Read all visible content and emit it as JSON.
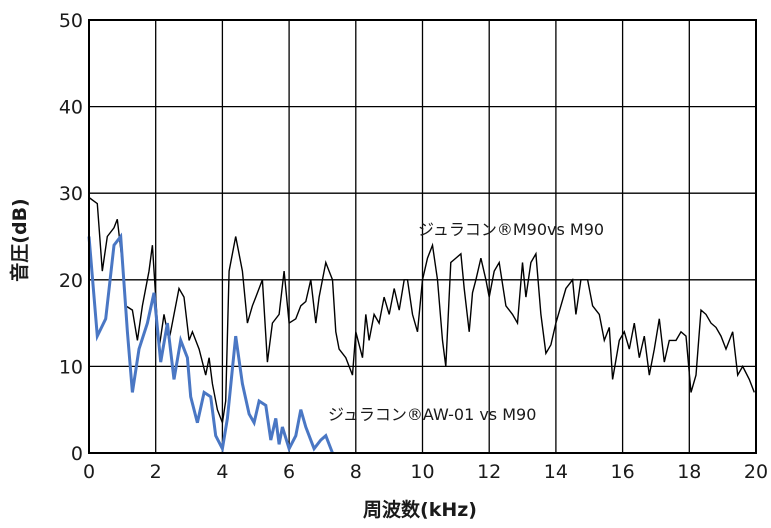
{
  "chart_data": {
    "type": "line",
    "title": "",
    "xlabel": "周波数(kHz)",
    "ylabel": "音圧(dB)",
    "xlim": [
      0,
      20
    ],
    "ylim": [
      0,
      50
    ],
    "x_ticks": [
      "0",
      "2",
      "4",
      "6",
      "8",
      "10",
      "12",
      "14",
      "16",
      "18",
      "20"
    ],
    "y_ticks": [
      "0",
      "10",
      "20",
      "30",
      "40",
      "50"
    ],
    "grid": true,
    "series": [
      {
        "name": "ジュラコン®M90vs M90",
        "color": "#000000",
        "points": [
          [
            0,
            29.5
          ],
          [
            0.25,
            28.8
          ],
          [
            0.4,
            21
          ],
          [
            0.55,
            25
          ],
          [
            0.75,
            26
          ],
          [
            0.85,
            27
          ],
          [
            1.0,
            22
          ],
          [
            1.1,
            17
          ],
          [
            1.3,
            16.5
          ],
          [
            1.45,
            13
          ],
          [
            1.6,
            17
          ],
          [
            1.8,
            21
          ],
          [
            1.9,
            24
          ],
          [
            2.0,
            18
          ],
          [
            2.1,
            12
          ],
          [
            2.25,
            16
          ],
          [
            2.4,
            13
          ],
          [
            2.55,
            16
          ],
          [
            2.7,
            19
          ],
          [
            2.85,
            18
          ],
          [
            3.0,
            13
          ],
          [
            3.1,
            14
          ],
          [
            3.3,
            12
          ],
          [
            3.5,
            9
          ],
          [
            3.6,
            11
          ],
          [
            3.7,
            8
          ],
          [
            3.85,
            5
          ],
          [
            4.0,
            3.5
          ],
          [
            4.1,
            6
          ],
          [
            4.2,
            21
          ],
          [
            4.4,
            25
          ],
          [
            4.6,
            21
          ],
          [
            4.75,
            15
          ],
          [
            4.9,
            17
          ],
          [
            5.0,
            18
          ],
          [
            5.2,
            20
          ],
          [
            5.35,
            10.5
          ],
          [
            5.5,
            15
          ],
          [
            5.7,
            16
          ],
          [
            5.85,
            21
          ],
          [
            6.0,
            15
          ],
          [
            6.2,
            15.5
          ],
          [
            6.35,
            17
          ],
          [
            6.5,
            17.5
          ],
          [
            6.65,
            20
          ],
          [
            6.8,
            15
          ],
          [
            6.9,
            18
          ],
          [
            7.1,
            22
          ],
          [
            7.2,
            21
          ],
          [
            7.3,
            20
          ],
          [
            7.4,
            14
          ],
          [
            7.5,
            12
          ],
          [
            7.7,
            11
          ],
          [
            7.9,
            9
          ],
          [
            8.0,
            14
          ],
          [
            8.2,
            11
          ],
          [
            8.3,
            16
          ],
          [
            8.4,
            13
          ],
          [
            8.55,
            16
          ],
          [
            8.7,
            15
          ],
          [
            8.85,
            18
          ],
          [
            9.0,
            16
          ],
          [
            9.15,
            19
          ],
          [
            9.3,
            16.5
          ],
          [
            9.45,
            20
          ],
          [
            9.55,
            20
          ],
          [
            9.7,
            16
          ],
          [
            9.85,
            14
          ],
          [
            10.0,
            20
          ],
          [
            10.15,
            22.5
          ],
          [
            10.3,
            24
          ],
          [
            10.45,
            20
          ],
          [
            10.6,
            13
          ],
          [
            10.7,
            10
          ],
          [
            10.85,
            22
          ],
          [
            11.0,
            22.5
          ],
          [
            11.15,
            23
          ],
          [
            11.25,
            19
          ],
          [
            11.4,
            14
          ],
          [
            11.5,
            18.5
          ],
          [
            11.6,
            20
          ],
          [
            11.75,
            22.5
          ],
          [
            11.9,
            20
          ],
          [
            12.0,
            18
          ],
          [
            12.15,
            21
          ],
          [
            12.3,
            22
          ],
          [
            12.5,
            17
          ],
          [
            12.7,
            16
          ],
          [
            12.85,
            15
          ],
          [
            13.0,
            22
          ],
          [
            13.1,
            18
          ],
          [
            13.25,
            22
          ],
          [
            13.4,
            23
          ],
          [
            13.55,
            16
          ],
          [
            13.7,
            11.5
          ],
          [
            13.85,
            12.5
          ],
          [
            14.0,
            15
          ],
          [
            14.15,
            17
          ],
          [
            14.3,
            19
          ],
          [
            14.5,
            20
          ],
          [
            14.6,
            16
          ],
          [
            14.75,
            20
          ],
          [
            14.95,
            20
          ],
          [
            15.1,
            17
          ],
          [
            15.3,
            16
          ],
          [
            15.45,
            13
          ],
          [
            15.6,
            14.5
          ],
          [
            15.7,
            8.5
          ],
          [
            15.9,
            13
          ],
          [
            16.05,
            14
          ],
          [
            16.2,
            12
          ],
          [
            16.35,
            15
          ],
          [
            16.5,
            11
          ],
          [
            16.65,
            13.5
          ],
          [
            16.8,
            9
          ],
          [
            16.95,
            12
          ],
          [
            17.1,
            15.5
          ],
          [
            17.25,
            10.5
          ],
          [
            17.4,
            13
          ],
          [
            17.6,
            13
          ],
          [
            17.75,
            14
          ],
          [
            17.9,
            13.5
          ],
          [
            18.05,
            7
          ],
          [
            18.2,
            9
          ],
          [
            18.35,
            16.5
          ],
          [
            18.5,
            16
          ],
          [
            18.65,
            15
          ],
          [
            18.8,
            14.5
          ],
          [
            18.95,
            13.5
          ],
          [
            19.1,
            12
          ],
          [
            19.3,
            14
          ],
          [
            19.45,
            9
          ],
          [
            19.6,
            10
          ],
          [
            19.8,
            8.5
          ],
          [
            19.95,
            7
          ]
        ]
      },
      {
        "name": "ジュラコン®AW-01 vs M90",
        "color": "#4a77c4",
        "points": [
          [
            0,
            25
          ],
          [
            0.25,
            13.5
          ],
          [
            0.5,
            15.5
          ],
          [
            0.75,
            24
          ],
          [
            0.95,
            25
          ],
          [
            1.15,
            14
          ],
          [
            1.3,
            7
          ],
          [
            1.5,
            12
          ],
          [
            1.75,
            15
          ],
          [
            1.95,
            18.5
          ],
          [
            2.15,
            10.5
          ],
          [
            2.35,
            15
          ],
          [
            2.55,
            8.5
          ],
          [
            2.75,
            13
          ],
          [
            2.95,
            11
          ],
          [
            3.05,
            6.5
          ],
          [
            3.25,
            3.5
          ],
          [
            3.45,
            7
          ],
          [
            3.65,
            6.5
          ],
          [
            3.8,
            2
          ],
          [
            4.0,
            0.5
          ],
          [
            4.15,
            4
          ],
          [
            4.4,
            13.5
          ],
          [
            4.6,
            8
          ],
          [
            4.8,
            4.5
          ],
          [
            4.95,
            3.5
          ],
          [
            5.1,
            6
          ],
          [
            5.3,
            5.5
          ],
          [
            5.45,
            1.5
          ],
          [
            5.6,
            4
          ],
          [
            5.7,
            1
          ],
          [
            5.8,
            3
          ],
          [
            6.0,
            0.5
          ],
          [
            6.2,
            2
          ],
          [
            6.35,
            5
          ],
          [
            6.5,
            3
          ],
          [
            6.75,
            0.5
          ],
          [
            6.95,
            1.5
          ],
          [
            7.1,
            2
          ],
          [
            7.3,
            0
          ]
        ]
      }
    ],
    "annotations": [
      {
        "text": "ジュラコン®M90vs M90",
        "series": 0
      },
      {
        "text": "ジュラコン®AW-01 vs M90",
        "series": 1
      }
    ]
  }
}
